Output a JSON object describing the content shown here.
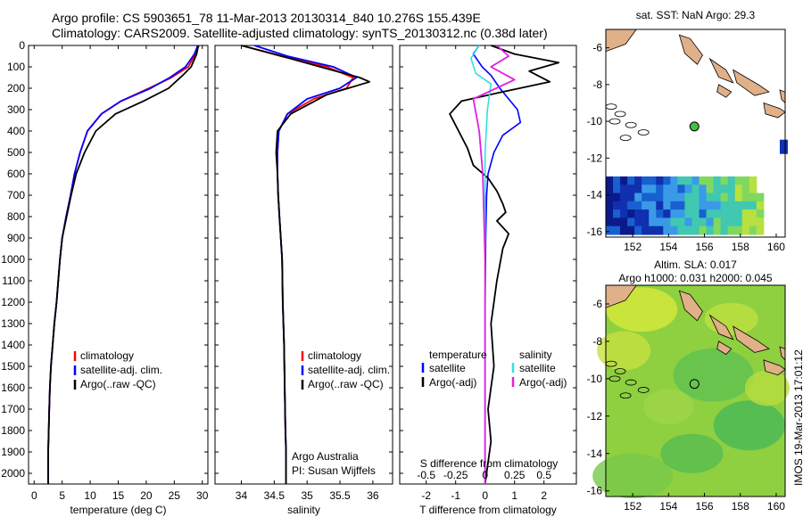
{
  "header": {
    "line1": "Argo profile: CS 5903651_78 11-Mar-2013 20130314_840 10.276S 155.439E",
    "line2": "Climatology: CARS2009. Satellite-adjusted climatology: synTS_20130312.nc (0.38d later)"
  },
  "stamp": "IMOS 19-Mar-2013 17:01:12",
  "colors": {
    "climatology": "#ff0000",
    "satellite": "#0000ff",
    "argo": "#000000",
    "sat_s": "#33e0e0",
    "argo_s": "#e020e0"
  },
  "chart_data": [
    {
      "type": "line",
      "name": "temperature",
      "xlabel": "temperature (deg C)",
      "ylim": [
        2050,
        0
      ],
      "xlim": [
        -1,
        31
      ],
      "xticks": [
        0,
        5,
        10,
        15,
        20,
        25,
        30
      ],
      "yticks": [
        0,
        100,
        200,
        300,
        400,
        500,
        600,
        700,
        800,
        900,
        1000,
        1100,
        1200,
        1300,
        1400,
        1500,
        1600,
        1700,
        1800,
        1900,
        2000
      ],
      "legend": [
        "climatology",
        "satellite-adj. clim.",
        "Argo(..raw -QC)"
      ],
      "series": [
        {
          "name": "climatology",
          "x": [
            29.4,
            28.8,
            27.5,
            24.5,
            20.5,
            15.5,
            12.0,
            9.5,
            8.2,
            7.2,
            6.5,
            5.7,
            5.0,
            4.6,
            4.3,
            4.0,
            3.6,
            3.3,
            3.0,
            2.8,
            2.7,
            2.6,
            2.5,
            2.5
          ],
          "depth": [
            0,
            40,
            100,
            150,
            200,
            260,
            320,
            400,
            500,
            600,
            700,
            800,
            900,
            1000,
            1100,
            1200,
            1300,
            1400,
            1500,
            1600,
            1700,
            1800,
            1900,
            2050
          ]
        },
        {
          "name": "satellite",
          "x": [
            29.2,
            28.6,
            27.0,
            24.2,
            20.8,
            15.5,
            12.0,
            9.5,
            8.2,
            7.2,
            6.5,
            5.7,
            5.0,
            4.6,
            4.3,
            4.0,
            3.6,
            3.3,
            3.0,
            2.8,
            2.7,
            2.6,
            2.5,
            2.5
          ],
          "depth": [
            0,
            40,
            100,
            150,
            200,
            260,
            320,
            400,
            500,
            600,
            700,
            800,
            900,
            1000,
            1100,
            1200,
            1300,
            1400,
            1500,
            1600,
            1700,
            1800,
            1900,
            2050
          ]
        },
        {
          "name": "argo",
          "x": [
            29.3,
            29.0,
            28.0,
            26.5,
            24.0,
            19.5,
            14.5,
            11.0,
            9.0,
            7.5,
            6.6,
            5.8,
            5.0,
            4.6,
            4.3,
            4.0,
            3.6,
            3.3,
            3.0,
            2.8,
            2.7,
            2.6,
            2.5,
            2.5
          ],
          "depth": [
            0,
            40,
            100,
            140,
            200,
            260,
            320,
            400,
            500,
            600,
            700,
            800,
            900,
            1000,
            1100,
            1200,
            1300,
            1400,
            1500,
            1600,
            1700,
            1800,
            1900,
            2050
          ]
        }
      ]
    },
    {
      "type": "line",
      "name": "salinity",
      "xlabel": "salinity",
      "ylim": [
        2050,
        0
      ],
      "xlim": [
        33.6,
        36.3
      ],
      "xticks": [
        34,
        34.5,
        35,
        35.5,
        36
      ],
      "legend": [
        "climatology",
        "satellite-adj. clim.",
        "Argo(..raw -QC)"
      ],
      "annotation": [
        "Argo Australia",
        "PI: Susan Wijffels"
      ],
      "series": [
        {
          "name": "climatology",
          "x": [
            34.0,
            34.6,
            35.3,
            35.7,
            35.6,
            35.1,
            34.7,
            34.57,
            34.55,
            34.55,
            34.56,
            34.58,
            34.6,
            34.62,
            34.63,
            34.65,
            34.66,
            34.67,
            34.68,
            34.68
          ],
          "depth": [
            0,
            50,
            100,
            150,
            200,
            250,
            320,
            400,
            500,
            600,
            700,
            800,
            900,
            1000,
            1200,
            1400,
            1600,
            1800,
            1900,
            2050
          ]
        },
        {
          "name": "satellite",
          "x": [
            34.2,
            34.7,
            35.4,
            35.75,
            35.5,
            35.0,
            34.7,
            34.57,
            34.55,
            34.55,
            34.56,
            34.58,
            34.6,
            34.62,
            34.63,
            34.65,
            34.66,
            34.67,
            34.68,
            34.68
          ],
          "depth": [
            0,
            50,
            100,
            150,
            200,
            250,
            320,
            400,
            500,
            600,
            700,
            800,
            900,
            1000,
            1200,
            1400,
            1600,
            1800,
            1900,
            2050
          ]
        },
        {
          "name": "argo",
          "x": [
            34.0,
            34.5,
            35.2,
            35.8,
            35.95,
            35.3,
            34.75,
            34.55,
            34.53,
            34.55,
            34.56,
            34.58,
            34.6,
            34.62,
            34.63,
            34.65,
            34.66,
            34.67,
            34.68,
            34.68
          ],
          "depth": [
            0,
            40,
            100,
            150,
            170,
            230,
            320,
            400,
            500,
            600,
            700,
            800,
            900,
            1000,
            1200,
            1400,
            1600,
            1800,
            1900,
            2050
          ]
        }
      ]
    },
    {
      "type": "line",
      "name": "difference",
      "xlabel": "T difference from climatology",
      "toplabel": "S difference from climatology",
      "ylim": [
        2050,
        0
      ],
      "xlim": [
        -2.9,
        3.1
      ],
      "xticks": [
        -2,
        -1,
        0,
        1,
        2
      ],
      "s_ticks": [
        "-0.5",
        "-0.25",
        "0",
        "0.25",
        "0.5"
      ],
      "legend_t": {
        "title": "temperature",
        "items": [
          "satellite",
          "Argo(-adj)"
        ]
      },
      "legend_s": {
        "title": "salinity",
        "items": [
          "satellite",
          "Argo(-adj)"
        ]
      },
      "series": [
        {
          "name": "T satellite",
          "x": [
            -0.2,
            -0.4,
            -0.1,
            0.2,
            0.5,
            0.8,
            1.1,
            1.2,
            0.6,
            0.3,
            0.1,
            0.05,
            0.02,
            0.0,
            0.0,
            0.0,
            0.0
          ],
          "depth": [
            0,
            40,
            100,
            140,
            200,
            250,
            300,
            360,
            420,
            500,
            600,
            700,
            900,
            1200,
            1500,
            1800,
            2050
          ]
        },
        {
          "name": "T argo",
          "x": [
            0.2,
            1.0,
            2.5,
            1.5,
            2.2,
            0.5,
            -0.8,
            -1.2,
            -0.9,
            -0.6,
            -0.4,
            0.1,
            0.4,
            0.6,
            0.7,
            0.4,
            0.8,
            0.6,
            0.4,
            0.2,
            0.3,
            0.1,
            0.2,
            0.1,
            0.0
          ],
          "depth": [
            0,
            40,
            80,
            120,
            170,
            220,
            260,
            320,
            400,
            480,
            560,
            620,
            680,
            740,
            780,
            820,
            880,
            950,
            1100,
            1300,
            1500,
            1700,
            1850,
            1950,
            2050
          ]
        },
        {
          "name": "S satellite",
          "x": [
            -0.05,
            -0.12,
            -0.08,
            0.05,
            0.02,
            0.0,
            0.0,
            0.0,
            0.0,
            0.0
          ],
          "depth": [
            0,
            60,
            130,
            180,
            300,
            500,
            800,
            1200,
            1600,
            2050
          ]
        },
        {
          "name": "S argo",
          "x": [
            0.1,
            0.2,
            0.05,
            0.25,
            -0.1,
            -0.05,
            -0.02,
            0.0,
            0.0,
            0.0
          ],
          "depth": [
            0,
            50,
            100,
            160,
            250,
            400,
            600,
            1000,
            1500,
            2050
          ]
        }
      ]
    },
    {
      "type": "heatmap",
      "name": "sst-map",
      "title": "sat. SST: NaN Argo: 29.3",
      "xticks": [
        "152",
        "154",
        "156",
        "158",
        "160"
      ],
      "yticks": [
        "-6",
        "-8",
        "-10",
        "-12",
        "-14",
        "-16"
      ],
      "marker": {
        "lon": 155.44,
        "lat": -10.28
      }
    },
    {
      "type": "heatmap",
      "name": "sla-map",
      "title1": "Altim. SLA: 0.017",
      "title2": "Argo h1000: 0.031 h2000: 0.045",
      "xticks": [
        "152",
        "154",
        "156",
        "158",
        "160"
      ],
      "yticks": [
        "-6",
        "-8",
        "-10",
        "-12",
        "-14",
        "-16"
      ],
      "marker": {
        "lon": 155.44,
        "lat": -10.28
      }
    }
  ]
}
